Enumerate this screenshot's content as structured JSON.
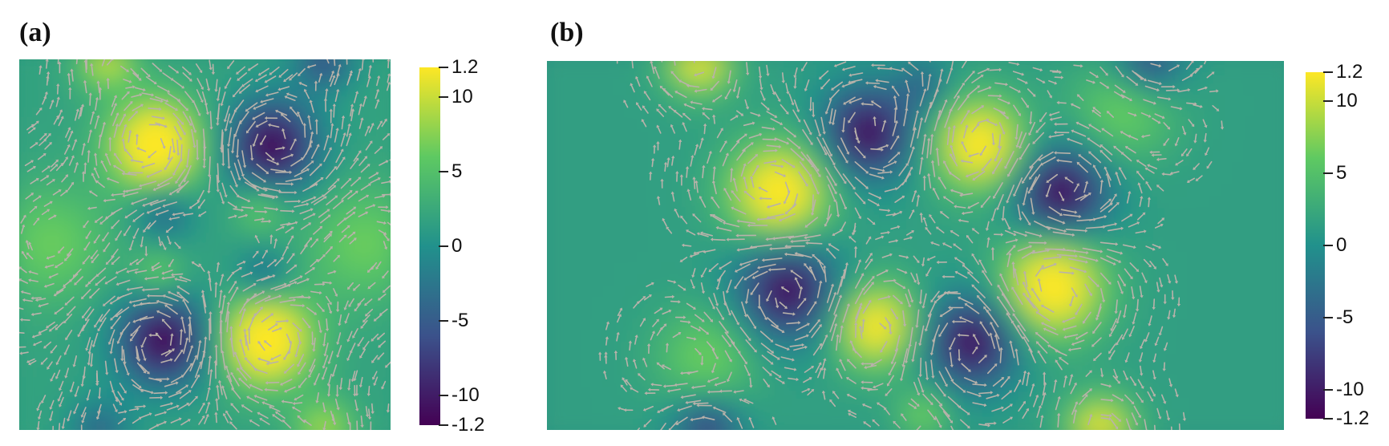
{
  "panels": [
    {
      "label": "(a)",
      "colorbar": {
        "max_label": "1.2",
        "min_label": "-1.2",
        "ticks": [
          {
            "value": 10,
            "label": "10"
          },
          {
            "value": 5,
            "label": "5"
          },
          {
            "value": 0,
            "label": "0"
          },
          {
            "value": -5,
            "label": "-5"
          },
          {
            "value": -10,
            "label": "-10"
          }
        ]
      }
    },
    {
      "label": "(b)",
      "colorbar": {
        "max_label": "1.2",
        "min_label": "-1.2",
        "ticks": [
          {
            "value": 10,
            "label": "10"
          },
          {
            "value": 5,
            "label": "5"
          },
          {
            "value": 0,
            "label": "0"
          },
          {
            "value": -5,
            "label": "-5"
          },
          {
            "value": -10,
            "label": "-10"
          }
        ]
      }
    }
  ],
  "colormap": {
    "name": "viridis",
    "stops": [
      "#440154",
      "#3b528b",
      "#21918c",
      "#5ec962",
      "#fde725"
    ]
  },
  "arrow_color": "#b9b2aa"
}
